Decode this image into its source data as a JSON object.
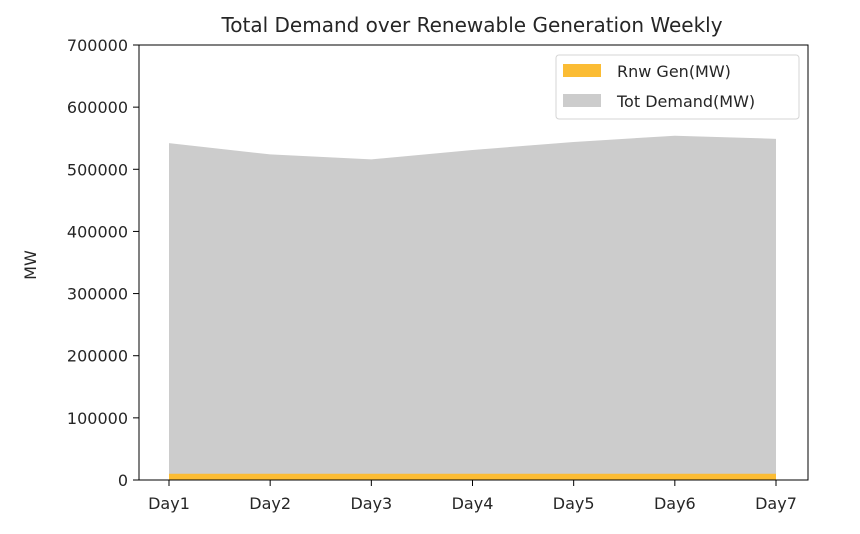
{
  "chart_data": {
    "type": "area",
    "stacked": false,
    "title": "Total Demand over Renewable Generation Weekly",
    "xlabel": "",
    "ylabel": "MW",
    "categories": [
      "Day1",
      "Day2",
      "Day3",
      "Day4",
      "Day5",
      "Day6",
      "Day7"
    ],
    "ylim": [
      0,
      700000
    ],
    "yticks": [
      0,
      100000,
      200000,
      300000,
      400000,
      500000,
      600000,
      700000
    ],
    "grid": false,
    "legend_position": "top-right",
    "series": [
      {
        "name": "Rnw Gen(MW)",
        "color": "#fbbc34",
        "values": [
          10000,
          10000,
          10000,
          10000,
          10000,
          10000,
          10000
        ]
      },
      {
        "name": "Tot Demand(MW)",
        "color": "#cccccc",
        "values": [
          542000,
          524000,
          516000,
          531000,
          544000,
          554000,
          549000
        ]
      }
    ]
  }
}
